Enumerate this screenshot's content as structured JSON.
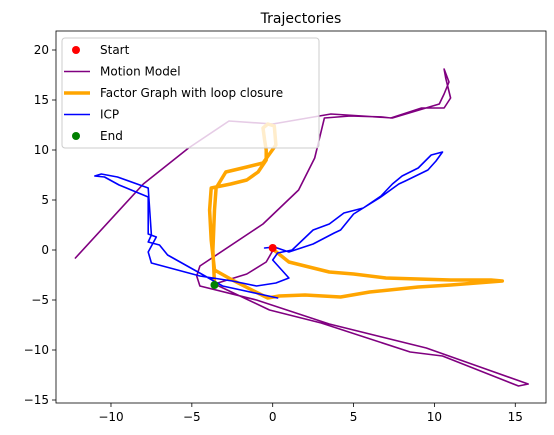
{
  "chart_data": {
    "type": "line",
    "title": "Trajectories",
    "xlabel": "",
    "ylabel": "",
    "xlim": [
      -13.4,
      16.9
    ],
    "ylim": [
      -15.3,
      21.9
    ],
    "xticks": [
      -10,
      -5,
      0,
      5,
      10,
      15
    ],
    "yticks": [
      -15,
      -10,
      -5,
      0,
      5,
      10,
      15,
      20
    ],
    "grid": false,
    "legend_position": "top-left",
    "legend": [
      {
        "label": "Start",
        "kind": "marker",
        "color": "#ff0000"
      },
      {
        "label": "Motion Model",
        "kind": "line",
        "color": "#800080"
      },
      {
        "label": "Factor Graph with loop closure",
        "kind": "thickline",
        "color": "#ffa500"
      },
      {
        "label": "ICP",
        "kind": "line",
        "color": "#0000ff"
      },
      {
        "label": "End",
        "kind": "marker",
        "color": "#008000"
      }
    ],
    "series": [
      {
        "name": "Motion Model",
        "color": "#800080",
        "width": 1.6,
        "points": [
          [
            0.1,
            0.2
          ],
          [
            -0.4,
            -1.2
          ],
          [
            -1.6,
            -2.4
          ],
          [
            -3.6,
            -3.4
          ],
          [
            -0.2,
            -6.0
          ],
          [
            3.0,
            -7.3
          ],
          [
            8.5,
            -10.2
          ],
          [
            10.5,
            -10.6
          ],
          [
            15.2,
            -13.6
          ],
          [
            15.8,
            -13.4
          ],
          [
            13.0,
            -11.8
          ],
          [
            9.5,
            -9.8
          ],
          [
            3.5,
            -7.4
          ],
          [
            -1.0,
            -5.0
          ],
          [
            -4.5,
            -3.6
          ],
          [
            -4.7,
            -2.6
          ],
          [
            -4.5,
            -1.6
          ],
          [
            -0.6,
            2.6
          ],
          [
            1.6,
            6.0
          ],
          [
            2.6,
            9.2
          ],
          [
            3.2,
            13.2
          ],
          [
            4.8,
            13.4
          ],
          [
            6.8,
            13.3
          ],
          [
            7.3,
            13.2
          ],
          [
            9.2,
            14.2
          ],
          [
            10.6,
            14.2
          ],
          [
            11.0,
            15.2
          ],
          [
            10.7,
            17.2
          ],
          [
            10.6,
            18.1
          ],
          [
            10.9,
            16.8
          ],
          [
            10.6,
            15.6
          ],
          [
            10.3,
            14.6
          ],
          [
            7.4,
            13.2
          ],
          [
            3.6,
            13.6
          ],
          [
            0.0,
            12.6
          ],
          [
            -2.7,
            12.9
          ],
          [
            -5.2,
            10.2
          ],
          [
            -8.0,
            6.6
          ],
          [
            -12.2,
            -0.8
          ]
        ]
      },
      {
        "name": "Factor Graph with loop closure",
        "color": "#ffa500",
        "width": 3.5,
        "points": [
          [
            0.0,
            0.1
          ],
          [
            1.0,
            -1.2
          ],
          [
            2.0,
            -1.6
          ],
          [
            3.5,
            -2.2
          ],
          [
            5.0,
            -2.4
          ],
          [
            7.0,
            -2.8
          ],
          [
            9.0,
            -2.9
          ],
          [
            11.0,
            -3.0
          ],
          [
            13.5,
            -3.0
          ],
          [
            14.2,
            -3.1
          ],
          [
            13.4,
            -3.2
          ],
          [
            11.0,
            -3.5
          ],
          [
            9.0,
            -3.7
          ],
          [
            6.0,
            -4.2
          ],
          [
            4.2,
            -4.7
          ],
          [
            2.0,
            -4.5
          ],
          [
            0.4,
            -4.6
          ],
          [
            -0.3,
            -4.8
          ],
          [
            -0.8,
            -4.4
          ],
          [
            -2.5,
            -3.0
          ],
          [
            -3.6,
            -2.0
          ],
          [
            -3.8,
            1.0
          ],
          [
            -3.9,
            4.0
          ],
          [
            -3.8,
            6.2
          ],
          [
            -2.6,
            6.6
          ],
          [
            -1.6,
            7.0
          ],
          [
            -0.9,
            7.8
          ],
          [
            -0.4,
            9.0
          ],
          [
            -0.4,
            10.0
          ],
          [
            -0.5,
            11.0
          ],
          [
            -0.6,
            12.2
          ],
          [
            -0.3,
            12.6
          ],
          [
            0.1,
            12.4
          ],
          [
            0.2,
            10.5
          ],
          [
            -0.6,
            8.7
          ],
          [
            -1.6,
            8.3
          ],
          [
            -2.9,
            7.8
          ],
          [
            -3.5,
            6.2
          ],
          [
            -3.6,
            4.0
          ],
          [
            -3.7,
            0.0
          ],
          [
            -3.6,
            -3.4
          ]
        ]
      },
      {
        "name": "ICP",
        "color": "#0000ff",
        "width": 1.6,
        "points": [
          [
            -0.5,
            0.2
          ],
          [
            0.1,
            0.3
          ],
          [
            1.0,
            -0.2
          ],
          [
            2.5,
            0.6
          ],
          [
            3.8,
            1.7
          ],
          [
            4.2,
            2.0
          ],
          [
            5.0,
            3.6
          ],
          [
            6.6,
            5.2
          ],
          [
            7.8,
            6.6
          ],
          [
            8.2,
            6.9
          ],
          [
            9.6,
            8.0
          ],
          [
            10.1,
            8.9
          ],
          [
            10.5,
            9.8
          ],
          [
            9.8,
            9.5
          ],
          [
            9.0,
            8.2
          ],
          [
            8.0,
            7.4
          ],
          [
            7.4,
            6.6
          ],
          [
            6.7,
            5.4
          ],
          [
            5.6,
            4.2
          ],
          [
            4.4,
            3.7
          ],
          [
            3.5,
            2.6
          ],
          [
            2.5,
            2.0
          ],
          [
            1.2,
            0.0
          ],
          [
            0.3,
            -0.3
          ],
          [
            0.0,
            -1.0
          ],
          [
            1.0,
            -2.8
          ],
          [
            0.2,
            -3.3
          ],
          [
            -1.0,
            -3.6
          ],
          [
            -2.5,
            -3.1
          ],
          [
            -4.5,
            -2.6
          ],
          [
            -7.5,
            -1.3
          ],
          [
            -7.7,
            -0.2
          ],
          [
            -7.2,
            1.3
          ],
          [
            -7.7,
            1.6
          ],
          [
            -7.7,
            5.3
          ],
          [
            -9.5,
            6.5
          ],
          [
            -10.4,
            7.3
          ],
          [
            -11.0,
            7.4
          ],
          [
            -10.6,
            7.6
          ],
          [
            -9.6,
            7.3
          ],
          [
            -7.7,
            6.2
          ],
          [
            -7.5,
            1.5
          ],
          [
            -7.7,
            0.8
          ],
          [
            -7.0,
            0.5
          ],
          [
            -6.5,
            -0.5
          ],
          [
            -4.4,
            -2.4
          ],
          [
            -3.1,
            -3.6
          ],
          [
            0.3,
            -4.8
          ]
        ]
      }
    ],
    "start": {
      "x": 0.0,
      "y": 0.2,
      "color": "#ff0000"
    },
    "end": {
      "x": -3.6,
      "y": -3.5,
      "color": "#008000"
    }
  }
}
